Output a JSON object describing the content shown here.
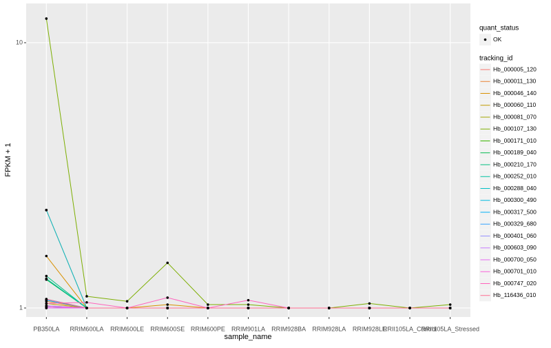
{
  "chart_data": {
    "type": "line",
    "log_y": true,
    "grid": true,
    "x_label": "sample_name",
    "y_label": "FPKM + 1",
    "categories": [
      "PB350LA",
      "RRIM600LA",
      "RRIM600LE",
      "RRIM600SE",
      "RRIM600PE",
      "RRIM901LA",
      "RRIM928BA",
      "RRIM928LA",
      "RRIM928LE",
      "RRII105LA_Control",
      "RRII105LA_Stressed"
    ],
    "ylim": [
      0.925,
      14.06
    ],
    "yticks": [
      1,
      10
    ],
    "point_legend_title": "quant_status",
    "point_legend_label": "OK",
    "point_color": "#000000",
    "legend_title": "tracking_id",
    "series": [
      {
        "name": "Hb_000005_120",
        "color": "#F8766D",
        "values": [
          2.34,
          1,
          1,
          1,
          1,
          1,
          1,
          1,
          1,
          1,
          1
        ]
      },
      {
        "name": "Hb_000011_130",
        "color": "#EA8331",
        "values": [
          1.06,
          1,
          1,
          1,
          1,
          1,
          1,
          1,
          1,
          1,
          1
        ]
      },
      {
        "name": "Hb_000046_140",
        "color": "#D89000",
        "values": [
          1.57,
          1,
          1,
          1.03,
          1,
          1,
          1,
          1,
          1,
          1,
          1
        ]
      },
      {
        "name": "Hb_000060_110",
        "color": "#C09B00",
        "values": [
          1.04,
          1,
          1,
          1,
          1,
          1,
          1,
          1,
          1,
          1,
          1
        ]
      },
      {
        "name": "Hb_000081_070",
        "color": "#A3A500",
        "values": [
          1.02,
          1,
          1,
          1,
          1,
          1,
          1,
          1,
          1,
          1,
          1
        ]
      },
      {
        "name": "Hb_000107_130",
        "color": "#7CAE00",
        "values": [
          12.33,
          1.107,
          1.06,
          1.48,
          1.03,
          1.03,
          1,
          1,
          1.04,
          1,
          1.03
        ]
      },
      {
        "name": "Hb_000171_010",
        "color": "#39B600",
        "values": [
          1.01,
          1,
          1,
          1,
          1,
          1,
          1,
          1,
          1,
          1,
          1
        ]
      },
      {
        "name": "Hb_000189_040",
        "color": "#00BB4E",
        "values": [
          1.28,
          1,
          1,
          1,
          1,
          1,
          1,
          1,
          1,
          1,
          1
        ]
      },
      {
        "name": "Hb_000210_170",
        "color": "#00BF7D",
        "values": [
          1.32,
          1,
          1,
          1,
          1,
          1,
          1,
          1,
          1,
          1,
          1
        ]
      },
      {
        "name": "Hb_000252_010",
        "color": "#00C1A3",
        "values": [
          1.29,
          1,
          1,
          1,
          1,
          1,
          1,
          1,
          1,
          1,
          1
        ]
      },
      {
        "name": "Hb_000288_040",
        "color": "#00BFC4",
        "values": [
          2.34,
          1,
          1,
          1,
          1,
          1,
          1,
          1,
          1,
          1,
          1
        ]
      },
      {
        "name": "Hb_000300_490",
        "color": "#00BAE0",
        "values": [
          1.08,
          1,
          1,
          1,
          1,
          1,
          1,
          1,
          1,
          1,
          1
        ]
      },
      {
        "name": "Hb_000317_500",
        "color": "#00B0F6",
        "values": [
          1.07,
          1,
          1,
          1,
          1,
          1,
          1,
          1,
          1,
          1,
          1
        ]
      },
      {
        "name": "Hb_000329_680",
        "color": "#35A2FF",
        "values": [
          1.01,
          1,
          1,
          1,
          1,
          1,
          1,
          1,
          1,
          1,
          1
        ]
      },
      {
        "name": "Hb_000401_060",
        "color": "#9590FF",
        "values": [
          1,
          1,
          1,
          1,
          1,
          1,
          1,
          1,
          1,
          1,
          1
        ]
      },
      {
        "name": "Hb_000603_090",
        "color": "#C77CFF",
        "values": [
          1.02,
          1,
          1,
          1,
          1,
          1,
          1,
          1,
          1,
          1,
          1
        ]
      },
      {
        "name": "Hb_000700_050",
        "color": "#E76BF3",
        "values": [
          1,
          1,
          1,
          1,
          1,
          1,
          1,
          1,
          1,
          1,
          1
        ]
      },
      {
        "name": "Hb_000701_010",
        "color": "#FA62DB",
        "values": [
          1.01,
          1,
          1,
          1,
          1,
          1,
          1,
          1,
          1,
          1,
          1
        ]
      },
      {
        "name": "Hb_000747_020",
        "color": "#FF62BC",
        "values": [
          1.04,
          1.05,
          1,
          1.094,
          1,
          1.07,
          1,
          1,
          1,
          1,
          1
        ]
      },
      {
        "name": "Hb_116436_010",
        "color": "#FF6C91",
        "values": [
          1.08,
          1,
          1,
          1,
          1,
          1,
          1,
          1,
          1,
          1,
          1
        ]
      }
    ]
  }
}
